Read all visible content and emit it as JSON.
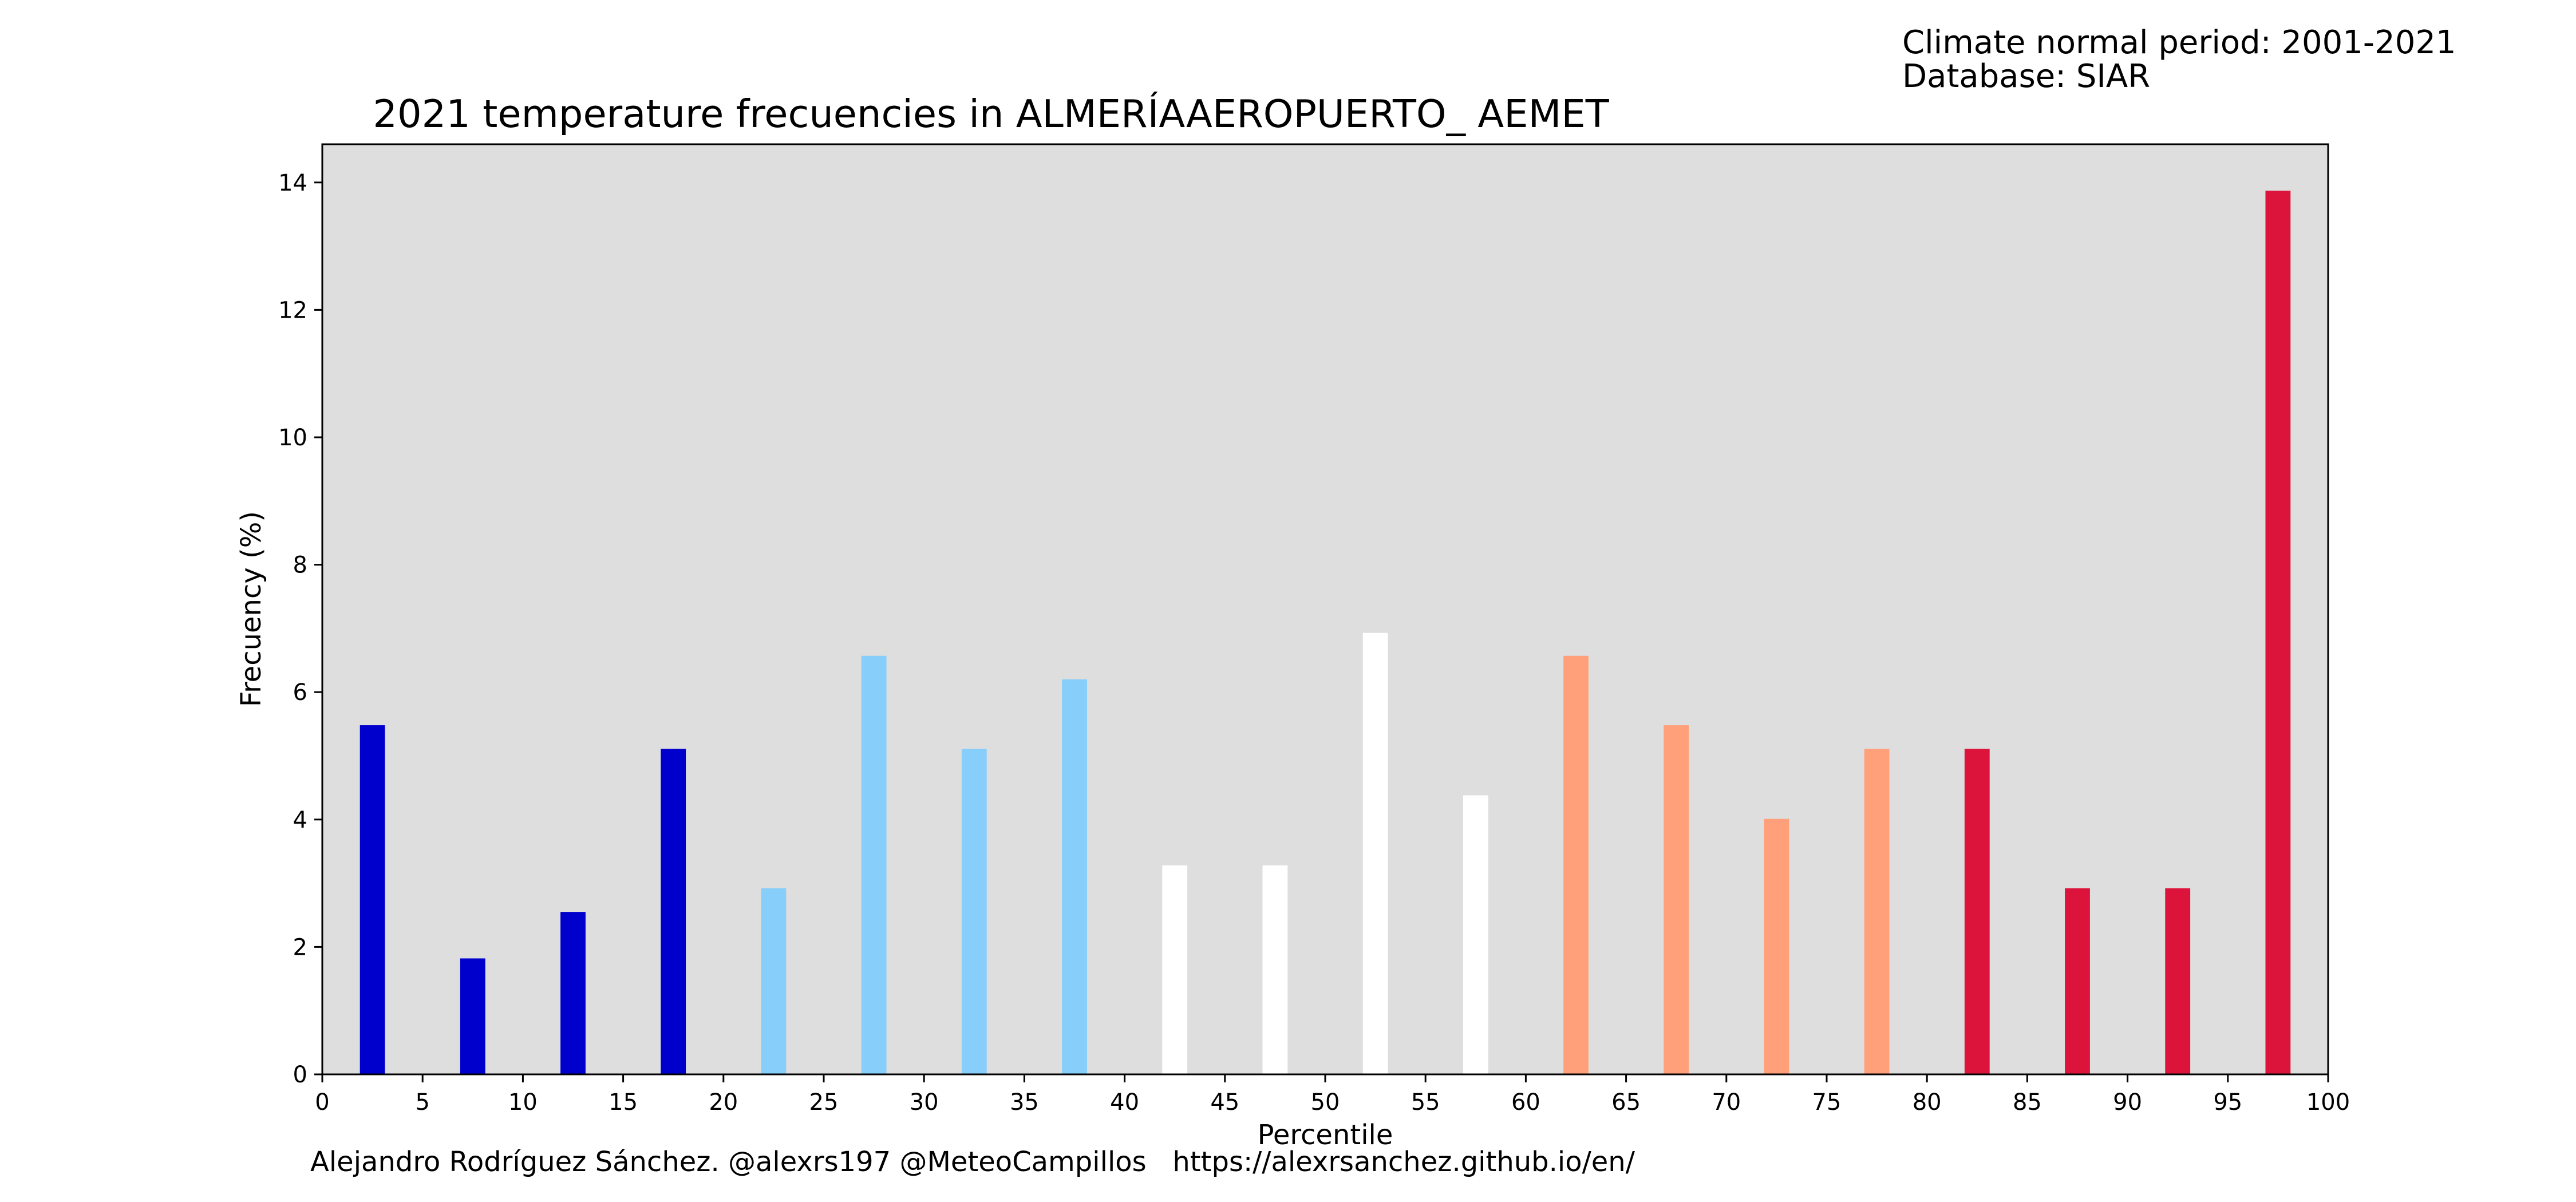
{
  "header": {
    "period_label": "Climate normal period: 2001-2021",
    "database_label": "Database: SIAR"
  },
  "footer": {
    "credit": "Alejandro Rodríguez Sánchez. @alexrs197 @MeteoCampillos   https://alexrsanchez.github.io/en/"
  },
  "chart_data": {
    "type": "bar",
    "title": "2021 temperature frecuencies in ALMERÍAAEROPUERTO_ AEMET",
    "xlabel": "Percentile",
    "ylabel": "Frecuency (%)",
    "xlim": [
      0,
      100
    ],
    "ylim": [
      0,
      14.6
    ],
    "xticks": [
      0,
      5,
      10,
      15,
      20,
      25,
      30,
      35,
      40,
      45,
      50,
      55,
      60,
      65,
      70,
      75,
      80,
      85,
      90,
      95,
      100
    ],
    "yticks": [
      0,
      2,
      4,
      6,
      8,
      10,
      12,
      14
    ],
    "bar_width": 1.25,
    "grid": false,
    "plot_background": "#dedede",
    "bars": [
      {
        "x": 2.5,
        "value": 5.48,
        "color": "#0000cd"
      },
      {
        "x": 7.5,
        "value": 1.82,
        "color": "#0000cd"
      },
      {
        "x": 12.5,
        "value": 2.55,
        "color": "#0000cd"
      },
      {
        "x": 17.5,
        "value": 5.11,
        "color": "#0000cd"
      },
      {
        "x": 22.5,
        "value": 2.92,
        "color": "#87cefa"
      },
      {
        "x": 27.5,
        "value": 6.57,
        "color": "#87cefa"
      },
      {
        "x": 32.5,
        "value": 5.11,
        "color": "#87cefa"
      },
      {
        "x": 37.5,
        "value": 6.2,
        "color": "#87cefa"
      },
      {
        "x": 42.5,
        "value": 3.28,
        "color": "#ffffff"
      },
      {
        "x": 47.5,
        "value": 3.28,
        "color": "#ffffff"
      },
      {
        "x": 52.5,
        "value": 6.93,
        "color": "#ffffff"
      },
      {
        "x": 57.5,
        "value": 4.38,
        "color": "#ffffff"
      },
      {
        "x": 62.5,
        "value": 6.57,
        "color": "#ffa07a"
      },
      {
        "x": 67.5,
        "value": 5.48,
        "color": "#ffa07a"
      },
      {
        "x": 72.5,
        "value": 4.01,
        "color": "#ffa07a"
      },
      {
        "x": 77.5,
        "value": 5.11,
        "color": "#ffa07a"
      },
      {
        "x": 82.5,
        "value": 5.11,
        "color": "#dc143c"
      },
      {
        "x": 87.5,
        "value": 2.92,
        "color": "#dc143c"
      },
      {
        "x": 92.5,
        "value": 2.92,
        "color": "#dc143c"
      },
      {
        "x": 97.5,
        "value": 13.87,
        "color": "#dc143c"
      }
    ]
  }
}
